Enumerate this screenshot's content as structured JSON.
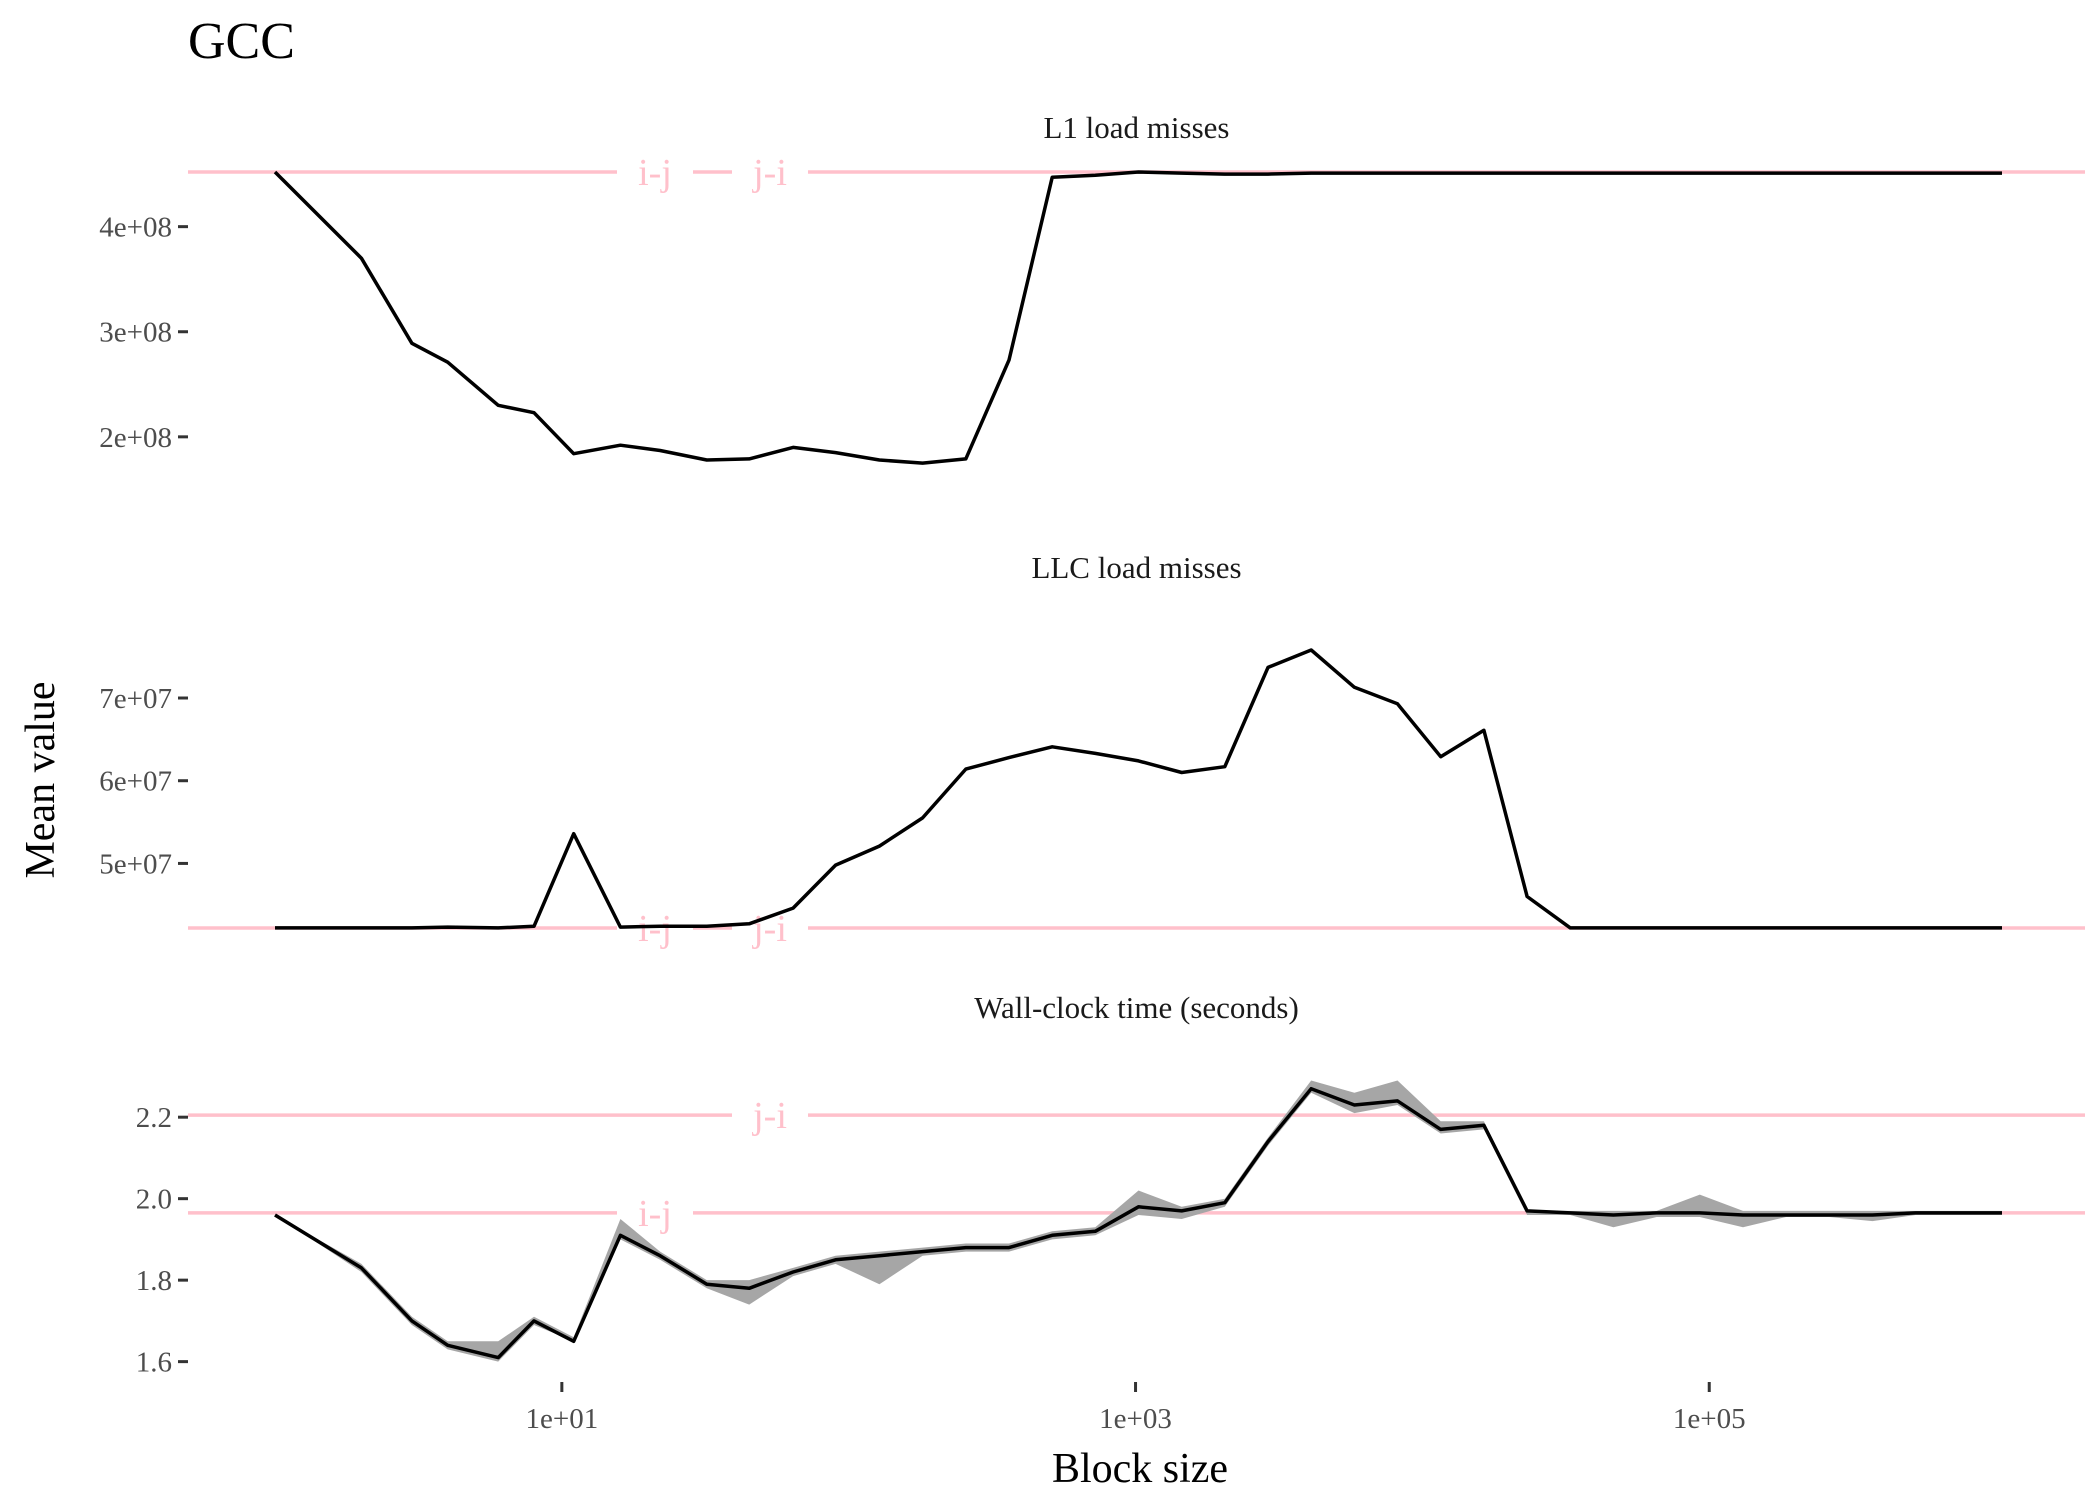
{
  "chart_data": {
    "type": "line",
    "title": "GCC",
    "xlabel": "Block size",
    "ylabel": "Mean value",
    "x_scale": "log10",
    "xlim": [
      1,
      1000000
    ],
    "x_ticks": [
      {
        "value": 10,
        "label": "1e+01"
      },
      {
        "value": 1000,
        "label": "1e+03"
      },
      {
        "value": 100000,
        "label": "1e+05"
      }
    ],
    "x": [
      1,
      2,
      3,
      4,
      6,
      8,
      11,
      16,
      22,
      32,
      45,
      64,
      90,
      128,
      181,
      256,
      362,
      512,
      724,
      1024,
      1448,
      2048,
      2896,
      4096,
      5793,
      8192,
      11585,
      16384,
      23170,
      32768,
      46341,
      65536,
      92682,
      131072,
      185364,
      262144,
      370728,
      524288,
      741455,
      1048576
    ],
    "panels": [
      {
        "strip": "L1 load misses",
        "ylim": [
          138000000,
          452000000
        ],
        "y_ticks": [
          {
            "value": 200000000,
            "label": "2e+08"
          },
          {
            "value": 300000000,
            "label": "3e+08"
          },
          {
            "value": 400000000,
            "label": "4e+08"
          }
        ],
        "reference_lines": [
          {
            "value": 452000000,
            "labels": [
              "i-j",
              "j-i"
            ]
          }
        ],
        "series": [
          {
            "values": [
              452000000,
              370000000,
              289000000,
              271000000,
              230000000,
              223000000,
              184000000,
              192000000,
              187000000,
              178000000,
              179000000,
              190000000,
              185000000,
              178000000,
              175000000,
              179000000,
              273000000,
              447000000,
              449000000,
              452000000,
              451000000,
              450000000,
              450000000,
              451000000,
              451000000,
              451000000,
              451000000,
              451000000,
              451000000,
              451000000,
              451000000,
              451000000,
              451000000,
              451000000,
              451000000,
              451000000,
              451000000,
              451000000,
              451000000,
              451000000
            ]
          }
        ]
      },
      {
        "strip": "LLC load misses",
        "ylim": [
          40500000,
          80400000
        ],
        "y_ticks": [
          {
            "value": 50000000,
            "label": "5e+07"
          },
          {
            "value": 60000000,
            "label": "6e+07"
          },
          {
            "value": 70000000,
            "label": "7e+07"
          }
        ],
        "reference_lines": [
          {
            "value": 42200000,
            "labels": [
              "i-j",
              "j-i"
            ]
          }
        ],
        "series": [
          {
            "values": [
              42200000,
              42200000,
              42200000,
              42300000,
              42200000,
              42400000,
              53600000,
              42300000,
              42400000,
              42400000,
              42700000,
              44600000,
              49800000,
              52100000,
              55500000,
              61400000,
              62800000,
              64100000,
              63300000,
              62400000,
              61000000,
              61700000,
              73700000,
              75800000,
              71300000,
              69300000,
              62900000,
              66100000,
              46000000,
              42200000,
              42200000,
              42200000,
              42200000,
              42200000,
              42200000,
              42200000,
              42200000,
              42200000,
              42200000,
              42200000
            ]
          }
        ]
      },
      {
        "strip": "Wall-clock time (seconds)",
        "ylim": [
          1.55,
          2.36
        ],
        "y_ticks": [
          {
            "value": 1.6,
            "label": "1.6"
          },
          {
            "value": 1.8,
            "label": "1.8"
          },
          {
            "value": 2.0,
            "label": "2.0"
          },
          {
            "value": 2.2,
            "label": "2.2"
          }
        ],
        "reference_lines": [
          {
            "value": 1.965,
            "labels": [
              "i-j"
            ]
          },
          {
            "value": 2.205,
            "labels": [
              "j-i"
            ]
          }
        ],
        "series": [
          {
            "values": [
              1.96,
              1.83,
              1.7,
              1.64,
              1.61,
              1.7,
              1.65,
              1.91,
              1.86,
              1.79,
              1.78,
              1.82,
              1.85,
              1.86,
              1.87,
              1.88,
              1.88,
              1.91,
              1.92,
              1.98,
              1.97,
              1.99,
              2.14,
              2.27,
              2.23,
              2.24,
              2.17,
              2.18,
              1.97,
              1.965,
              1.96,
              1.965,
              1.965,
              1.96,
              1.96,
              1.96,
              1.96,
              1.965,
              1.965,
              1.965
            ],
            "lower": [
              1.96,
              1.82,
              1.69,
              1.63,
              1.6,
              1.69,
              1.65,
              1.9,
              1.85,
              1.78,
              1.74,
              1.81,
              1.84,
              1.79,
              1.86,
              1.87,
              1.87,
              1.9,
              1.91,
              1.96,
              1.95,
              1.98,
              2.13,
              2.26,
              2.21,
              2.23,
              2.16,
              2.17,
              1.96,
              1.96,
              1.93,
              1.955,
              1.955,
              1.93,
              1.955,
              1.955,
              1.945,
              1.96,
              1.96,
              1.96
            ],
            "upper": [
              1.96,
              1.84,
              1.71,
              1.65,
              1.65,
              1.71,
              1.66,
              1.95,
              1.87,
              1.8,
              1.8,
              1.83,
              1.86,
              1.87,
              1.88,
              1.89,
              1.89,
              1.92,
              1.93,
              2.02,
              1.98,
              2.0,
              2.15,
              2.29,
              2.26,
              2.29,
              2.19,
              2.19,
              1.97,
              1.97,
              1.97,
              1.97,
              2.01,
              1.97,
              1.97,
              1.97,
              1.97,
              1.97,
              1.97,
              1.97
            ]
          }
        ]
      }
    ]
  }
}
